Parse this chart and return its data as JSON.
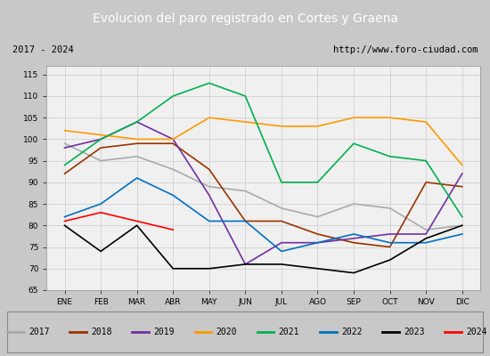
{
  "title": "Evolucion del paro registrado en Cortes y Graena",
  "title_color": "#ffffff",
  "title_bg": "#4f81bd",
  "subtitle_left": "2017 - 2024",
  "subtitle_right": "http://www.foro-ciudad.com",
  "months": [
    "ENE",
    "FEB",
    "MAR",
    "ABR",
    "MAY",
    "JUN",
    "JUL",
    "AGO",
    "SEP",
    "OCT",
    "NOV",
    "DIC"
  ],
  "ylim": [
    65,
    117
  ],
  "yticks": [
    65,
    70,
    75,
    80,
    85,
    90,
    95,
    100,
    105,
    110,
    115
  ],
  "series": {
    "2017": {
      "color": "#aaaaaa",
      "data": [
        99,
        95,
        96,
        93,
        89,
        88,
        84,
        82,
        85,
        84,
        79,
        80
      ]
    },
    "2018": {
      "color": "#993300",
      "data": [
        92,
        98,
        99,
        99,
        93,
        81,
        81,
        78,
        76,
        75,
        90,
        89
      ]
    },
    "2019": {
      "color": "#7030a0",
      "data": [
        98,
        100,
        104,
        100,
        87,
        71,
        76,
        76,
        77,
        78,
        78,
        92
      ]
    },
    "2020": {
      "color": "#ff9900",
      "data": [
        102,
        101,
        100,
        100,
        105,
        104,
        103,
        103,
        105,
        105,
        104,
        94
      ]
    },
    "2021": {
      "color": "#00b050",
      "data": [
        94,
        100,
        104,
        110,
        113,
        110,
        90,
        90,
        99,
        96,
        95,
        82
      ]
    },
    "2022": {
      "color": "#0070c0",
      "data": [
        82,
        85,
        91,
        87,
        81,
        81,
        74,
        76,
        78,
        76,
        76,
        78
      ]
    },
    "2023": {
      "color": "#000000",
      "data": [
        80,
        74,
        80,
        70,
        70,
        71,
        71,
        70,
        69,
        72,
        77,
        80
      ]
    },
    "2024": {
      "color": "#ff0000",
      "data": [
        81,
        83,
        81,
        79,
        null,
        null,
        null,
        null,
        null,
        null,
        null,
        null
      ]
    }
  }
}
